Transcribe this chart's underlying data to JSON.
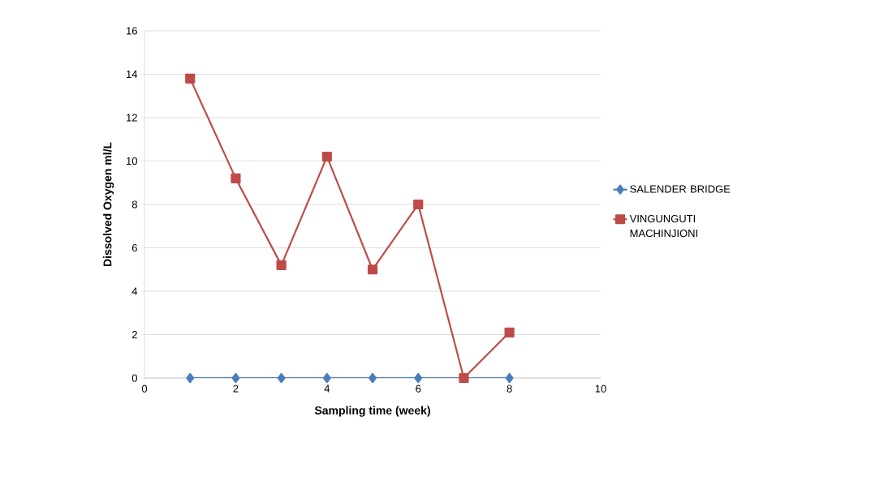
{
  "chart_data": {
    "type": "line",
    "xlabel": "Sampling time (week)",
    "ylabel": "Dissolved Oxygen ml/L",
    "x": [
      1,
      2,
      3,
      4,
      5,
      6,
      7,
      8
    ],
    "series": [
      {
        "name": "SALENDER BRIDGE",
        "color": "#4a7ebb",
        "marker": "diamond",
        "values": [
          0,
          0,
          0,
          0,
          0,
          0,
          0,
          0
        ]
      },
      {
        "name": "VINGUNGUTI MACHINJIONI",
        "color": "#be4b48",
        "marker": "square",
        "values": [
          13.8,
          9.2,
          5.2,
          10.2,
          5.0,
          8.0,
          0,
          2.1
        ]
      }
    ],
    "xlim": [
      0,
      10
    ],
    "xticks": [
      0,
      2,
      4,
      6,
      8,
      10
    ],
    "ylim": [
      0,
      16
    ],
    "yticks": [
      0,
      2,
      4,
      6,
      8,
      10,
      12,
      14,
      16
    ],
    "grid": "y",
    "legend": "right",
    "line_style": "solid"
  }
}
